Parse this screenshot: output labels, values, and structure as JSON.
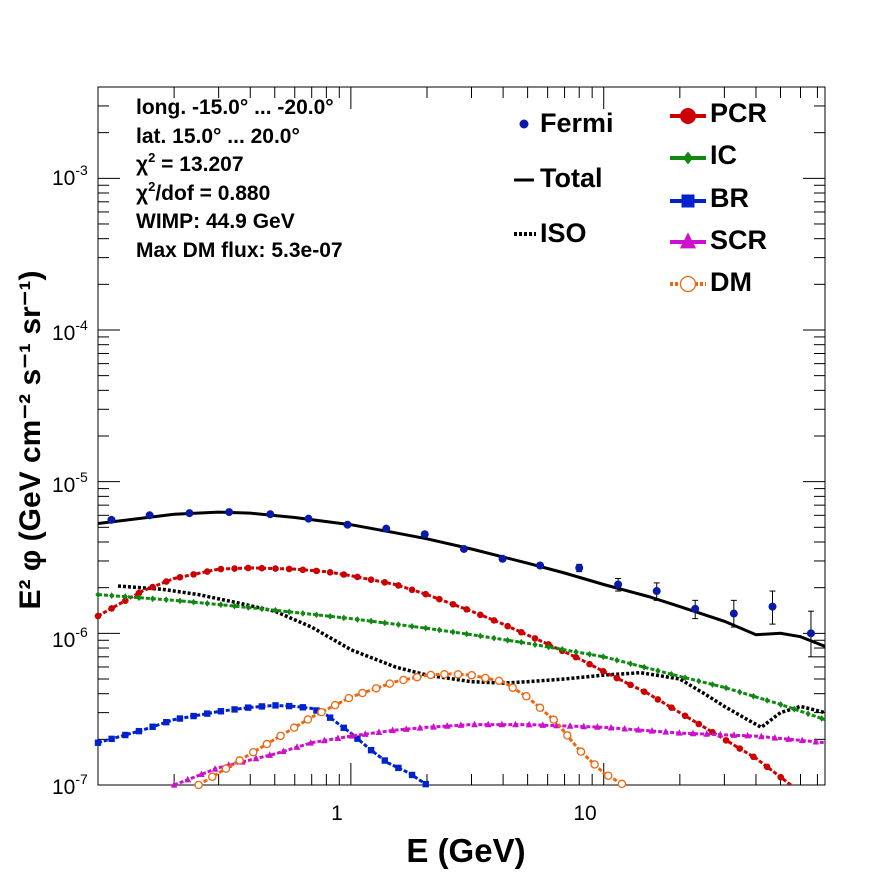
{
  "info": {
    "line1": "long. -15.0° ... -20.0°",
    "line2": "lat. 15.0° ... 20.0°",
    "chi2_value": "= 13.207",
    "chi2dof_value": "/dof = 0.880",
    "wimp": "WIMP: 44.9 GeV",
    "maxdm": "Max DM flux: 5.3e-07"
  },
  "legend": {
    "fermi": "Fermi",
    "total": "Total",
    "iso": "ISO",
    "pcr": "PCR",
    "ic": "IC",
    "br": "BR",
    "scr": "SCR",
    "dm": "DM"
  },
  "colors": {
    "fermi": "#0a1aa8",
    "total": "#000000",
    "iso": "#000000",
    "pcr": "#cc0000",
    "ic": "#118811",
    "br": "#0022cc",
    "scr": "#cc11cc",
    "dm": "#ee6611"
  },
  "chart_data": {
    "type": "scatter",
    "xlabel": "E (GeV)",
    "ylabel": "E² φ (GeV cm⁻² s⁻¹ sr⁻¹)",
    "xscale": "log",
    "yscale": "log",
    "xlim": [
      0.1,
      75
    ],
    "ylim": [
      1e-07,
      0.004
    ],
    "xtick_labels": [
      "1",
      "10"
    ],
    "ytick_labels": [
      "10^-7",
      "10^-6",
      "10^-5",
      "10^-4",
      "10^-3"
    ],
    "legend_position": "top-right",
    "fermi": {
      "x": [
        0.113,
        0.16,
        0.23,
        0.33,
        0.48,
        0.68,
        0.97,
        1.38,
        1.96,
        2.8,
        3.98,
        5.6,
        8.0,
        11.4,
        16.2,
        23.0,
        32.7,
        46.5,
        66.0,
        90.0
      ],
      "y": [
        5.6e-06,
        6e-06,
        6.2e-06,
        6.3e-06,
        6.1e-06,
        5.7e-06,
        5.2e-06,
        4.9e-06,
        4.5e-06,
        3.6e-06,
        3.1e-06,
        2.8e-06,
        2.7e-06,
        2.1e-06,
        1.9e-06,
        1.45e-06,
        1.35e-06,
        1.5e-06,
        1e-06,
        8.3e-07
      ],
      "err_lo": [
        null,
        null,
        null,
        null,
        null,
        null,
        null,
        null,
        null,
        null,
        null,
        null,
        1.5e-07,
        2e-07,
        2.5e-07,
        2e-07,
        2.5e-07,
        3.5e-07,
        3e-07,
        3e-07
      ],
      "err_hi": [
        null,
        null,
        null,
        null,
        null,
        null,
        null,
        null,
        null,
        null,
        null,
        null,
        1.5e-07,
        2e-07,
        2.5e-07,
        2e-07,
        3e-07,
        4e-07,
        4e-07,
        4.5e-07
      ]
    },
    "series": [
      {
        "name": "Total",
        "style": "solid",
        "color": "#000000",
        "x": [
          0.1,
          0.2,
          0.3,
          0.4,
          0.6,
          1.0,
          1.5,
          2.0,
          3.0,
          5.0,
          7.0,
          10.0,
          15.0,
          20.0,
          30.0,
          40.0,
          50.0,
          60.0,
          75.0
        ],
        "y": [
          5.3e-06,
          6.1e-06,
          6.3e-06,
          6.2e-06,
          5.8e-06,
          5.2e-06,
          4.6e-06,
          4.2e-06,
          3.6e-06,
          2.9e-06,
          2.5e-06,
          2.1e-06,
          1.75e-06,
          1.5e-06,
          1.2e-06,
          9.8e-07,
          1e-06,
          9.5e-07,
          8.2e-07
        ]
      },
      {
        "name": "ISO",
        "style": "dotted",
        "color": "#000000",
        "x": [
          0.12,
          0.18,
          0.25,
          0.35,
          0.5,
          0.7,
          1.0,
          1.5,
          2.0,
          3.0,
          4.0,
          5.0,
          7.0,
          10.0,
          14.0,
          20.0,
          25.0,
          30.0,
          37.0,
          42.0,
          50.0,
          60.0,
          75.0
        ],
        "y": [
          2.05e-06,
          1.95e-06,
          1.8e-06,
          1.6e-06,
          1.4e-06,
          1.1e-06,
          7.8e-07,
          6e-07,
          5.3e-07,
          4.8e-07,
          4.7e-07,
          4.8e-07,
          5e-07,
          5.3e-07,
          5.5e-07,
          5e-07,
          4e-07,
          3.3e-07,
          2.7e-07,
          2.4e-07,
          3e-07,
          3.3e-07,
          3e-07
        ]
      },
      {
        "name": "PCR",
        "style": "marker",
        "color": "#cc0000",
        "x": [
          0.1,
          0.15,
          0.2,
          0.3,
          0.4,
          0.6,
          0.8,
          1.0,
          1.5,
          2.0,
          3.0,
          4.0,
          6.0,
          8.0,
          10.0,
          15.0,
          20.0,
          30.0,
          40.0,
          55.0,
          70.0
        ],
        "y": [
          1.3e-06,
          1.9e-06,
          2.3e-06,
          2.65e-06,
          2.7e-06,
          2.65e-06,
          2.55e-06,
          2.4e-06,
          2.1e-06,
          1.8e-06,
          1.4e-06,
          1.15e-06,
          8.5e-07,
          6.8e-07,
          5.6e-07,
          4e-07,
          3e-07,
          2e-07,
          1.5e-07,
          1e-07,
          7.8e-08
        ]
      },
      {
        "name": "IC",
        "style": "marker",
        "color": "#118811",
        "x": [
          0.1,
          0.2,
          0.3,
          0.5,
          1.0,
          2.0,
          3.0,
          5.0,
          10.0,
          20.0,
          30.0,
          50.0,
          75.0
        ],
        "y": [
          1.8e-06,
          1.65e-06,
          1.55e-06,
          1.42e-06,
          1.25e-06,
          1.08e-06,
          9.8e-07,
          8.6e-07,
          7e-07,
          5.2e-07,
          4.4e-07,
          3.4e-07,
          2.7e-07
        ]
      },
      {
        "name": "BR",
        "style": "marker",
        "color": "#0022cc",
        "x": [
          0.1,
          0.15,
          0.2,
          0.3,
          0.4,
          0.5,
          0.6,
          0.7,
          0.8,
          1.0,
          1.2,
          1.4,
          1.7,
          2.0
        ],
        "y": [
          1.9e-07,
          2.3e-07,
          2.7e-07,
          3.05e-07,
          3.25e-07,
          3.35e-07,
          3.3e-07,
          3.2e-07,
          2.9e-07,
          2.2e-07,
          1.7e-07,
          1.4e-07,
          1.2e-07,
          1e-07
        ]
      },
      {
        "name": "SCR",
        "style": "marker",
        "color": "#cc11cc",
        "x": [
          0.2,
          0.3,
          0.5,
          0.7,
          1.0,
          1.5,
          2.0,
          3.0,
          5.0,
          10.0,
          20.0,
          40.0,
          75.0
        ],
        "y": [
          1e-07,
          1.3e-07,
          1.6e-07,
          1.9e-07,
          2.1e-07,
          2.3e-07,
          2.4e-07,
          2.5e-07,
          2.5e-07,
          2.4e-07,
          2.2e-07,
          2.1e-07,
          1.9e-07
        ]
      },
      {
        "name": "DM",
        "style": "marker",
        "color": "#ee6611",
        "x": [
          0.25,
          0.35,
          0.5,
          0.7,
          1.0,
          1.5,
          2.0,
          2.5,
          3.0,
          4.0,
          5.0,
          6.5,
          8.0,
          10.0,
          12.0
        ],
        "y": [
          1e-07,
          1.4e-07,
          2e-07,
          2.8e-07,
          3.8e-07,
          4.8e-07,
          5.3e-07,
          5.4e-07,
          5.3e-07,
          4.8e-07,
          3.8e-07,
          2.6e-07,
          1.7e-07,
          1.2e-07,
          1e-07
        ]
      }
    ]
  }
}
